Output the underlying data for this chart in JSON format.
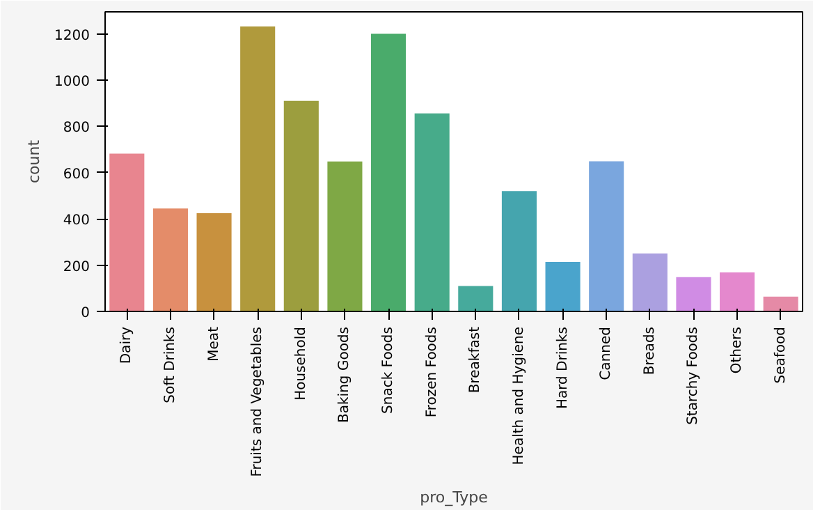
{
  "chart_data": {
    "type": "bar",
    "xlabel": "pro_Type",
    "ylabel": "count",
    "categories": [
      "Dairy",
      "Soft Drinks",
      "Meat",
      "Fruits and Vegetables",
      "Household",
      "Baking Goods",
      "Snack Foods",
      "Frozen Foods",
      "Breakfast",
      "Health and Hygiene",
      "Hard Drinks",
      "Canned",
      "Breads",
      "Starchy Foods",
      "Others",
      "Seafood"
    ],
    "values": [
      682,
      445,
      425,
      1232,
      910,
      648,
      1200,
      856,
      110,
      520,
      214,
      649,
      251,
      148,
      169,
      64
    ],
    "colors": [
      "#e8858f",
      "#e48c69",
      "#c8913e",
      "#b09a3c",
      "#9c9e3e",
      "#7fa845",
      "#4aab6b",
      "#47ab8a",
      "#46aa9c",
      "#45a5ae",
      "#4aa4cc",
      "#7aa6de",
      "#aba0e0",
      "#d08ce4",
      "#e488cd",
      "#e58aa6"
    ],
    "ylim": [
      0,
      1295
    ],
    "yticks": [
      0,
      200,
      400,
      600,
      800,
      1000,
      1200
    ],
    "grid": false
  }
}
